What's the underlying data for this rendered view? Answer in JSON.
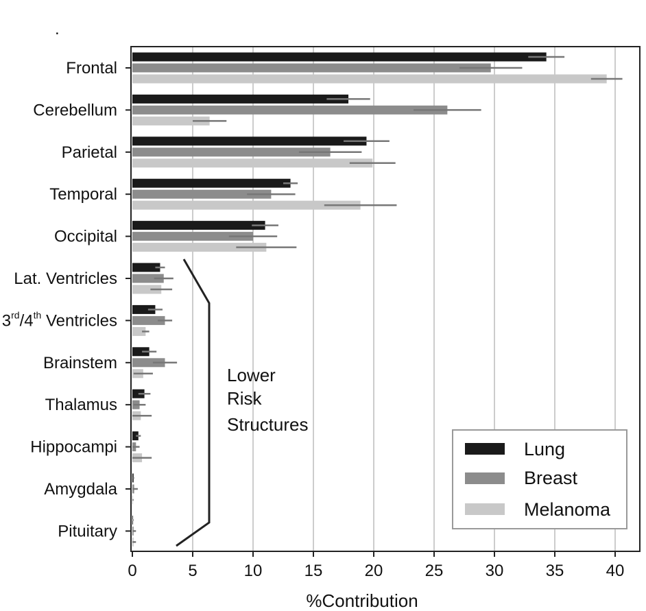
{
  "chart_data": {
    "type": "bar",
    "orientation": "horizontal",
    "title": "",
    "xlabel": "%Contribution",
    "ylabel": "",
    "xlim": [
      0,
      42
    ],
    "xticks": [
      0,
      5,
      10,
      15,
      20,
      25,
      30,
      35,
      40
    ],
    "grid": "vertical",
    "legend_position": "bottom-right",
    "categories": [
      "Frontal",
      "Cerebellum",
      "Parietal",
      "Temporal",
      "Occipital",
      "Lat. Ventricles",
      "3rd/4th Ventricles",
      "Brainstem",
      "Thalamus",
      "Hippocampi",
      "Amygdala",
      "Pituitary"
    ],
    "series": [
      {
        "name": "Lung",
        "color": "#1a1a1a",
        "values": [
          34.3,
          17.9,
          19.4,
          13.1,
          11.0,
          2.3,
          1.9,
          1.4,
          1.0,
          0.5,
          0.1,
          0.05
        ],
        "errors": [
          1.5,
          1.8,
          1.9,
          0.6,
          1.1,
          0.4,
          0.6,
          0.6,
          0.5,
          0.2,
          0.05,
          0.05
        ]
      },
      {
        "name": "Breast",
        "color": "#8c8c8c",
        "values": [
          29.7,
          26.1,
          16.4,
          11.5,
          10.0,
          2.6,
          2.7,
          2.7,
          0.6,
          0.3,
          0.15,
          0.1
        ],
        "errors": [
          2.6,
          2.8,
          2.6,
          2.0,
          2.0,
          0.8,
          0.6,
          1.0,
          0.5,
          0.3,
          0.3,
          0.2
        ]
      },
      {
        "name": "Melanoma",
        "color": "#c8c8c8",
        "values": [
          39.3,
          6.4,
          19.9,
          18.9,
          11.1,
          2.4,
          1.1,
          0.9,
          0.7,
          0.8,
          0.05,
          0.1
        ],
        "errors": [
          1.3,
          1.4,
          1.9,
          3.0,
          2.5,
          0.9,
          0.3,
          0.8,
          0.9,
          0.8,
          0.05,
          0.2
        ]
      }
    ],
    "annotation": {
      "lines": [
        "Lower",
        "Risk",
        "Structures"
      ]
    },
    "marker": "."
  }
}
